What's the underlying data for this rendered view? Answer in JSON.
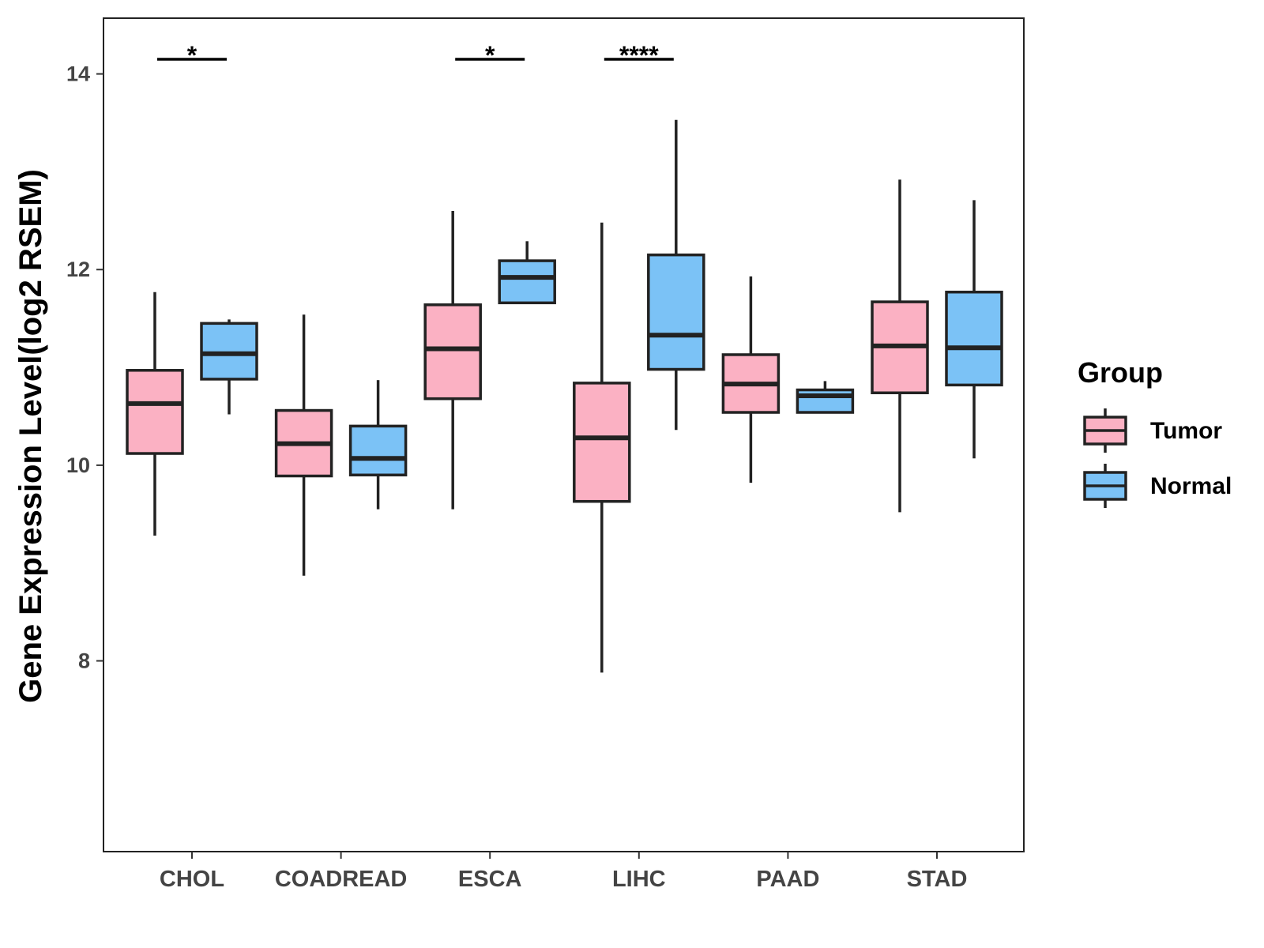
{
  "chart_data": {
    "type": "boxplot",
    "ylabel": "Gene Expression Level(log2 RSEM)",
    "xlabel": "",
    "ylim": [
      6.05,
      14.57
    ],
    "yticks": [
      8,
      10,
      12,
      14
    ],
    "grid": false,
    "categories": [
      "CHOL",
      "COADREAD",
      "ESCA",
      "LIHC",
      "PAAD",
      "STAD"
    ],
    "legend": {
      "title": "Group",
      "placement": "right"
    },
    "series": [
      {
        "name": "Tumor",
        "color": "#FBB1C3",
        "boxes": [
          {
            "min": 9.28,
            "q1": 10.12,
            "median": 10.63,
            "q3": 10.97,
            "max": 11.77
          },
          {
            "min": 8.87,
            "q1": 9.89,
            "median": 10.22,
            "q3": 10.56,
            "max": 11.54
          },
          {
            "min": 9.55,
            "q1": 10.68,
            "median": 11.19,
            "q3": 11.64,
            "max": 12.6
          },
          {
            "min": 7.88,
            "q1": 9.63,
            "median": 10.28,
            "q3": 10.84,
            "max": 12.48
          },
          {
            "min": 9.82,
            "q1": 10.54,
            "median": 10.83,
            "q3": 11.13,
            "max": 11.93
          },
          {
            "min": 9.52,
            "q1": 10.74,
            "median": 11.22,
            "q3": 11.67,
            "max": 12.92
          }
        ]
      },
      {
        "name": "Normal",
        "color": "#7BC2F6",
        "boxes": [
          {
            "min": 10.52,
            "q1": 10.88,
            "median": 11.14,
            "q3": 11.45,
            "max": 11.49
          },
          {
            "min": 9.55,
            "q1": 9.9,
            "median": 10.07,
            "q3": 10.4,
            "max": 10.87
          },
          {
            "min": 11.66,
            "q1": 11.66,
            "median": 11.92,
            "q3": 12.09,
            "max": 12.29
          },
          {
            "min": 10.36,
            "q1": 10.98,
            "median": 11.33,
            "q3": 12.15,
            "max": 13.53
          },
          {
            "min": 10.54,
            "q1": 10.54,
            "median": 10.71,
            "q3": 10.77,
            "max": 10.86
          },
          {
            "min": 10.07,
            "q1": 10.82,
            "median": 11.2,
            "q3": 11.77,
            "max": 12.71
          }
        ]
      }
    ],
    "significance": [
      {
        "category": "CHOL",
        "label": "*",
        "y": 14.15
      },
      {
        "category": "ESCA",
        "label": "*",
        "y": 14.15
      },
      {
        "category": "LIHC",
        "label": "****",
        "y": 14.15
      }
    ]
  }
}
